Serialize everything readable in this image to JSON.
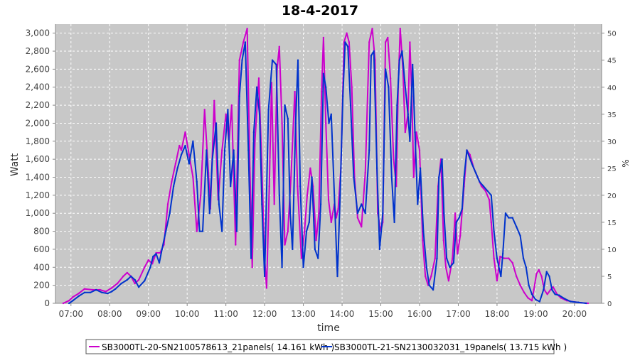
{
  "chart_data": {
    "type": "line",
    "title": "18-4-2017",
    "xlabel": "time",
    "ylabel": "Watt",
    "y2label": "%",
    "x_ticks": [
      "07:00",
      "08:00",
      "09:00",
      "10:00",
      "11:00",
      "12:00",
      "13:00",
      "14:00",
      "15:00",
      "16:00",
      "17:00",
      "18:00",
      "19:00",
      "20:00"
    ],
    "y_ticks": [
      "0",
      "200",
      "400",
      "600",
      "800",
      "1,000",
      "1,200",
      "1,400",
      "1,600",
      "1,800",
      "2,000",
      "2,200",
      "2,400",
      "2,600",
      "2,800",
      "3,000"
    ],
    "y2_ticks": [
      "0",
      "5",
      "10",
      "15",
      "20",
      "25",
      "30",
      "35",
      "40",
      "45",
      "50"
    ],
    "ylim": [
      0,
      3100
    ],
    "y2lim": [
      0,
      51.67
    ],
    "xlim_hours": [
      6.6,
      20.7
    ],
    "grid": true,
    "legend_position": "bottom",
    "series": [
      {
        "name": "SB3000TL-20-SN2100578613_21panels",
        "energy": "14.161 kWh",
        "color": "#cc00cc",
        "points": [
          [
            6.8,
            0
          ],
          [
            6.95,
            30
          ],
          [
            7.05,
            70
          ],
          [
            7.2,
            110
          ],
          [
            7.35,
            160
          ],
          [
            7.55,
            150
          ],
          [
            7.75,
            150
          ],
          [
            7.9,
            130
          ],
          [
            8.05,
            170
          ],
          [
            8.2,
            220
          ],
          [
            8.35,
            300
          ],
          [
            8.45,
            340
          ],
          [
            8.55,
            300
          ],
          [
            8.65,
            220
          ],
          [
            8.75,
            260
          ],
          [
            8.9,
            400
          ],
          [
            9.0,
            480
          ],
          [
            9.1,
            440
          ],
          [
            9.2,
            560
          ],
          [
            9.3,
            560
          ],
          [
            9.4,
            650
          ],
          [
            9.5,
            1100
          ],
          [
            9.6,
            1350
          ],
          [
            9.7,
            1550
          ],
          [
            9.8,
            1750
          ],
          [
            9.85,
            1700
          ],
          [
            9.95,
            1900
          ],
          [
            10.05,
            1650
          ],
          [
            10.15,
            1400
          ],
          [
            10.25,
            800
          ],
          [
            10.35,
            1200
          ],
          [
            10.45,
            2150
          ],
          [
            10.55,
            1450
          ],
          [
            10.6,
            1050
          ],
          [
            10.7,
            2250
          ],
          [
            10.8,
            1150
          ],
          [
            10.9,
            1700
          ],
          [
            11.0,
            2100
          ],
          [
            11.08,
            1800
          ],
          [
            11.15,
            2200
          ],
          [
            11.25,
            650
          ],
          [
            11.35,
            2700
          ],
          [
            11.45,
            2900
          ],
          [
            11.55,
            3050
          ],
          [
            11.62,
            1500
          ],
          [
            11.68,
            400
          ],
          [
            11.75,
            1800
          ],
          [
            11.85,
            2500
          ],
          [
            11.92,
            1600
          ],
          [
            12.0,
            500
          ],
          [
            12.05,
            170
          ],
          [
            12.12,
            1300
          ],
          [
            12.18,
            2450
          ],
          [
            12.25,
            1100
          ],
          [
            12.32,
            2600
          ],
          [
            12.38,
            2850
          ],
          [
            12.45,
            2000
          ],
          [
            12.52,
            650
          ],
          [
            12.6,
            800
          ],
          [
            12.68,
            1400
          ],
          [
            12.78,
            2350
          ],
          [
            12.85,
            1300
          ],
          [
            12.95,
            500
          ],
          [
            13.03,
            800
          ],
          [
            13.1,
            1200
          ],
          [
            13.18,
            1500
          ],
          [
            13.25,
            1300
          ],
          [
            13.33,
            700
          ],
          [
            13.4,
            1000
          ],
          [
            13.47,
            2350
          ],
          [
            13.52,
            2950
          ],
          [
            13.58,
            2000
          ],
          [
            13.65,
            1150
          ],
          [
            13.72,
            900
          ],
          [
            13.8,
            1100
          ],
          [
            13.85,
            950
          ],
          [
            13.9,
            1050
          ],
          [
            13.97,
            1500
          ],
          [
            14.05,
            2900
          ],
          [
            14.12,
            3000
          ],
          [
            14.18,
            2900
          ],
          [
            14.25,
            2400
          ],
          [
            14.32,
            1400
          ],
          [
            14.4,
            950
          ],
          [
            14.5,
            850
          ],
          [
            14.6,
            1450
          ],
          [
            14.7,
            2900
          ],
          [
            14.78,
            3050
          ],
          [
            14.85,
            2700
          ],
          [
            14.92,
            1000
          ],
          [
            15.0,
            800
          ],
          [
            15.05,
            900
          ],
          [
            15.12,
            2900
          ],
          [
            15.18,
            2950
          ],
          [
            15.25,
            2500
          ],
          [
            15.33,
            1600
          ],
          [
            15.4,
            1300
          ],
          [
            15.45,
            2400
          ],
          [
            15.5,
            3050
          ],
          [
            15.57,
            2600
          ],
          [
            15.63,
            1900
          ],
          [
            15.7,
            2100
          ],
          [
            15.75,
            2900
          ],
          [
            15.8,
            2300
          ],
          [
            15.85,
            1400
          ],
          [
            15.92,
            1900
          ],
          [
            16.0,
            1700
          ],
          [
            16.08,
            700
          ],
          [
            16.15,
            300
          ],
          [
            16.22,
            200
          ],
          [
            16.3,
            300
          ],
          [
            16.4,
            500
          ],
          [
            16.48,
            1300
          ],
          [
            16.55,
            1600
          ],
          [
            16.62,
            700
          ],
          [
            16.68,
            400
          ],
          [
            16.75,
            250
          ],
          [
            16.85,
            500
          ],
          [
            16.92,
            1000
          ],
          [
            16.98,
            550
          ],
          [
            17.05,
            750
          ],
          [
            17.15,
            1300
          ],
          [
            17.22,
            1700
          ],
          [
            17.3,
            1650
          ],
          [
            17.4,
            1500
          ],
          [
            17.5,
            1400
          ],
          [
            17.6,
            1300
          ],
          [
            17.7,
            1250
          ],
          [
            17.8,
            1150
          ],
          [
            17.85,
            900
          ],
          [
            17.92,
            500
          ],
          [
            18.0,
            250
          ],
          [
            18.08,
            520
          ],
          [
            18.18,
            500
          ],
          [
            18.3,
            500
          ],
          [
            18.4,
            450
          ],
          [
            18.5,
            300
          ],
          [
            18.6,
            200
          ],
          [
            18.7,
            120
          ],
          [
            18.8,
            60
          ],
          [
            18.9,
            30
          ],
          [
            18.95,
            150
          ],
          [
            19.02,
            330
          ],
          [
            19.08,
            370
          ],
          [
            19.15,
            300
          ],
          [
            19.22,
            150
          ],
          [
            19.3,
            100
          ],
          [
            19.38,
            150
          ],
          [
            19.45,
            180
          ],
          [
            19.55,
            100
          ],
          [
            19.65,
            60
          ],
          [
            19.8,
            30
          ],
          [
            20.0,
            15
          ],
          [
            20.2,
            5
          ],
          [
            20.35,
            0
          ]
        ]
      },
      {
        "name": "SB3000TL-21-SN2130032031_19panels",
        "energy": "13.715 kWh",
        "color": "#0033cc",
        "points": [
          [
            6.95,
            0
          ],
          [
            7.05,
            30
          ],
          [
            7.2,
            80
          ],
          [
            7.35,
            120
          ],
          [
            7.5,
            120
          ],
          [
            7.65,
            150
          ],
          [
            7.8,
            120
          ],
          [
            7.95,
            110
          ],
          [
            8.05,
            130
          ],
          [
            8.15,
            160
          ],
          [
            8.3,
            220
          ],
          [
            8.45,
            260
          ],
          [
            8.55,
            300
          ],
          [
            8.65,
            260
          ],
          [
            8.75,
            180
          ],
          [
            8.9,
            250
          ],
          [
            9.05,
            400
          ],
          [
            9.12,
            520
          ],
          [
            9.2,
            550
          ],
          [
            9.28,
            450
          ],
          [
            9.35,
            600
          ],
          [
            9.45,
            800
          ],
          [
            9.55,
            1000
          ],
          [
            9.65,
            1300
          ],
          [
            9.75,
            1500
          ],
          [
            9.85,
            1650
          ],
          [
            9.95,
            1750
          ],
          [
            10.05,
            1550
          ],
          [
            10.15,
            1800
          ],
          [
            10.25,
            1350
          ],
          [
            10.32,
            800
          ],
          [
            10.4,
            800
          ],
          [
            10.5,
            1700
          ],
          [
            10.58,
            1000
          ],
          [
            10.65,
            1600
          ],
          [
            10.75,
            2000
          ],
          [
            10.82,
            1100
          ],
          [
            10.9,
            800
          ],
          [
            10.97,
            1700
          ],
          [
            11.05,
            2150
          ],
          [
            11.12,
            1300
          ],
          [
            11.2,
            1700
          ],
          [
            11.28,
            800
          ],
          [
            11.35,
            2300
          ],
          [
            11.42,
            2700
          ],
          [
            11.5,
            2900
          ],
          [
            11.58,
            1700
          ],
          [
            11.65,
            500
          ],
          [
            11.72,
            1900
          ],
          [
            11.8,
            2400
          ],
          [
            11.87,
            2100
          ],
          [
            11.93,
            1100
          ],
          [
            12.0,
            300
          ],
          [
            12.1,
            2150
          ],
          [
            12.2,
            2700
          ],
          [
            12.3,
            2650
          ],
          [
            12.38,
            1200
          ],
          [
            12.45,
            400
          ],
          [
            12.52,
            2200
          ],
          [
            12.6,
            2050
          ],
          [
            12.66,
            1000
          ],
          [
            12.72,
            600
          ],
          [
            12.8,
            2000
          ],
          [
            12.86,
            2700
          ],
          [
            12.92,
            1300
          ],
          [
            13.0,
            400
          ],
          [
            13.08,
            800
          ],
          [
            13.15,
            900
          ],
          [
            13.22,
            1400
          ],
          [
            13.3,
            600
          ],
          [
            13.38,
            500
          ],
          [
            13.45,
            1100
          ],
          [
            13.52,
            2550
          ],
          [
            13.58,
            2400
          ],
          [
            13.66,
            2000
          ],
          [
            13.72,
            2100
          ],
          [
            13.8,
            1200
          ],
          [
            13.88,
            300
          ],
          [
            13.95,
            1200
          ],
          [
            14.02,
            2300
          ],
          [
            14.08,
            2900
          ],
          [
            14.15,
            2850
          ],
          [
            14.22,
            2200
          ],
          [
            14.3,
            1400
          ],
          [
            14.4,
            1000
          ],
          [
            14.5,
            1100
          ],
          [
            14.6,
            1000
          ],
          [
            14.7,
            1700
          ],
          [
            14.75,
            2750
          ],
          [
            14.82,
            2800
          ],
          [
            14.9,
            1500
          ],
          [
            14.97,
            600
          ],
          [
            15.05,
            1000
          ],
          [
            15.12,
            2600
          ],
          [
            15.2,
            2400
          ],
          [
            15.28,
            1400
          ],
          [
            15.35,
            900
          ],
          [
            15.42,
            2200
          ],
          [
            15.48,
            2700
          ],
          [
            15.55,
            2800
          ],
          [
            15.62,
            2450
          ],
          [
            15.7,
            2100
          ],
          [
            15.75,
            1800
          ],
          [
            15.82,
            2650
          ],
          [
            15.88,
            1900
          ],
          [
            15.95,
            1100
          ],
          [
            16.02,
            1500
          ],
          [
            16.1,
            800
          ],
          [
            16.18,
            400
          ],
          [
            16.25,
            200
          ],
          [
            16.35,
            150
          ],
          [
            16.45,
            500
          ],
          [
            16.5,
            1400
          ],
          [
            16.58,
            1600
          ],
          [
            16.63,
            1000
          ],
          [
            16.7,
            500
          ],
          [
            16.78,
            400
          ],
          [
            16.88,
            450
          ],
          [
            16.95,
            900
          ],
          [
            17.02,
            950
          ],
          [
            17.1,
            1050
          ],
          [
            17.15,
            1400
          ],
          [
            17.22,
            1700
          ],
          [
            17.35,
            1550
          ],
          [
            17.45,
            1450
          ],
          [
            17.55,
            1350
          ],
          [
            17.65,
            1300
          ],
          [
            17.75,
            1250
          ],
          [
            17.85,
            1200
          ],
          [
            17.92,
            800
          ],
          [
            18.0,
            500
          ],
          [
            18.1,
            300
          ],
          [
            18.15,
            550
          ],
          [
            18.22,
            1000
          ],
          [
            18.3,
            950
          ],
          [
            18.4,
            950
          ],
          [
            18.5,
            850
          ],
          [
            18.6,
            750
          ],
          [
            18.68,
            500
          ],
          [
            18.75,
            400
          ],
          [
            18.82,
            200
          ],
          [
            18.9,
            100
          ],
          [
            19.0,
            40
          ],
          [
            19.1,
            20
          ],
          [
            19.2,
            150
          ],
          [
            19.28,
            350
          ],
          [
            19.35,
            300
          ],
          [
            19.42,
            150
          ],
          [
            19.5,
            100
          ],
          [
            19.6,
            90
          ],
          [
            19.75,
            50
          ],
          [
            19.9,
            20
          ],
          [
            20.1,
            10
          ],
          [
            20.3,
            0
          ]
        ]
      }
    ]
  }
}
